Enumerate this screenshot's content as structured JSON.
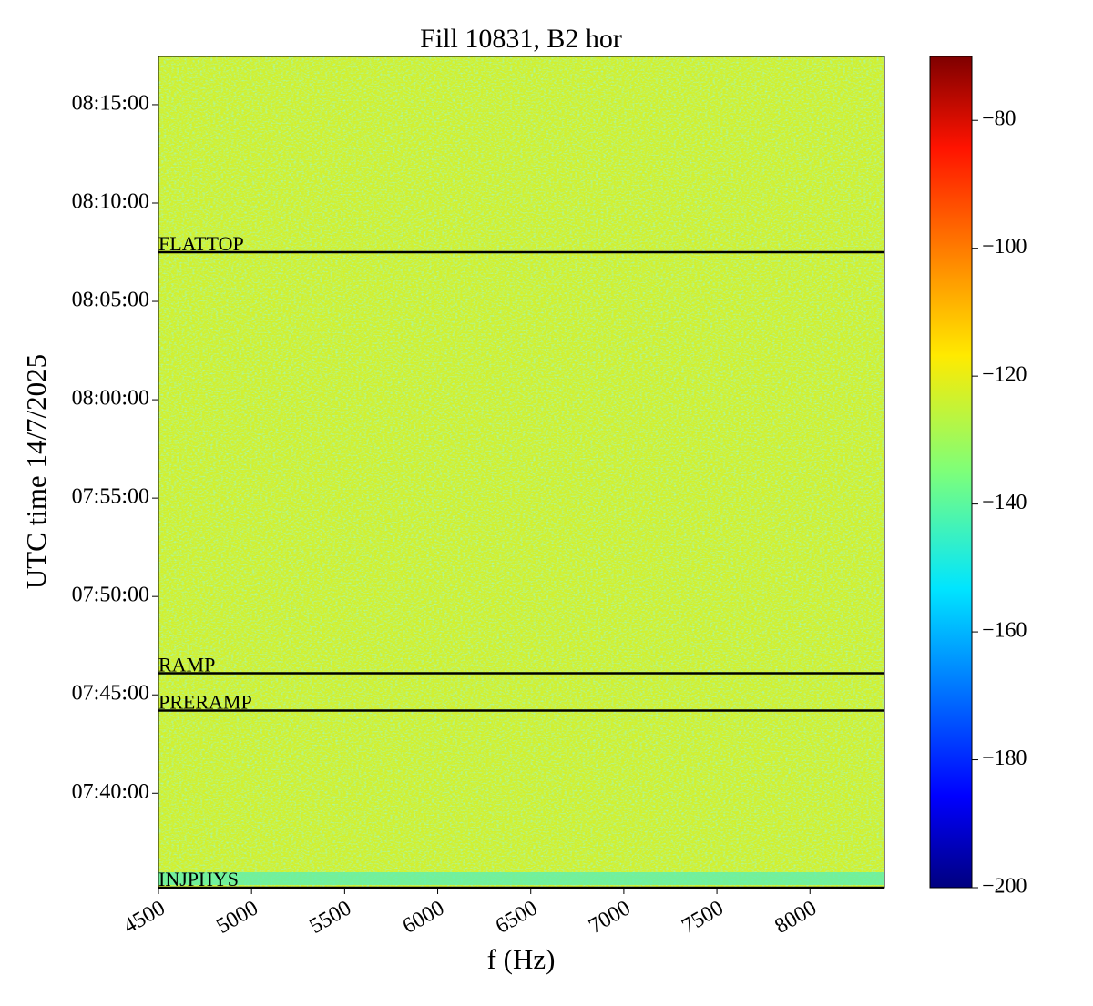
{
  "chart_data": {
    "type": "spectrogram",
    "title": "Fill 10831, B2 hor",
    "x_label": "f (Hz)",
    "y_label": "UTC time 14/7/2025",
    "xlim": [
      4500,
      8400
    ],
    "xticks": [
      4500,
      5000,
      5500,
      6000,
      6500,
      7000,
      7500,
      8000
    ],
    "ylim": [
      "07:35:12",
      "08:17:27"
    ],
    "yticks": [
      "07:40:00",
      "07:45:00",
      "07:50:00",
      "07:55:00",
      "08:00:00",
      "08:05:00",
      "08:10:00",
      "08:15:00"
    ],
    "clim": [
      -200,
      -70
    ],
    "cticks": [
      {
        "value": -200,
        "label": "−200"
      },
      {
        "value": -180,
        "label": "−180"
      },
      {
        "value": -160,
        "label": "−160"
      },
      {
        "value": -140,
        "label": "−140"
      },
      {
        "value": -120,
        "label": "−120"
      },
      {
        "value": -100,
        "label": "−100"
      },
      {
        "value": -80,
        "label": "−80"
      }
    ],
    "colormap": "jet",
    "markers": [
      {
        "label": "FLATTOP",
        "time": "08:07:30"
      },
      {
        "label": "RAMP",
        "time": "07:46:06"
      },
      {
        "label": "PRERAMP",
        "time": "07:44:12"
      },
      {
        "label": "INJPHYS",
        "time": "07:35:12"
      }
    ],
    "marker_color": "#000000"
  }
}
